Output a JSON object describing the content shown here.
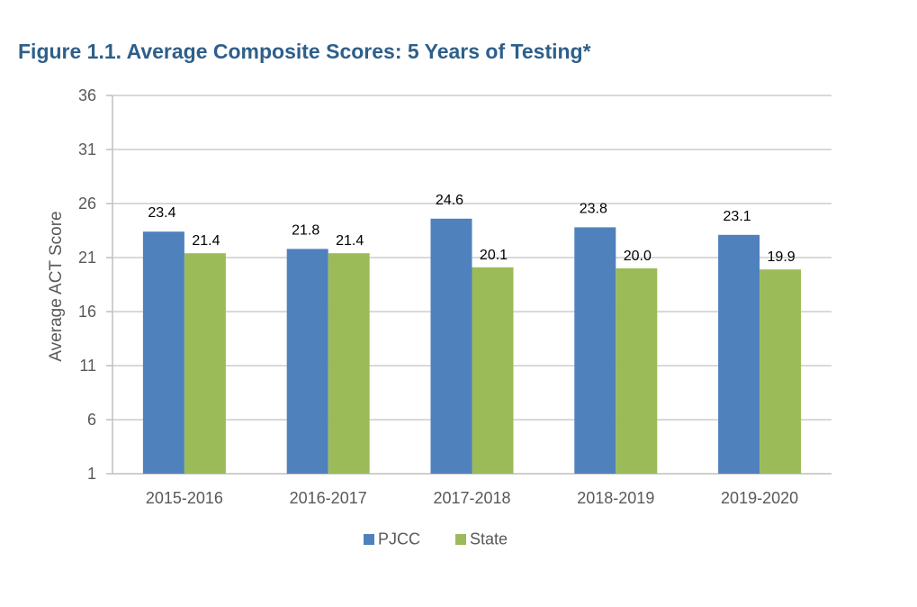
{
  "chart_data": {
    "type": "bar",
    "title": "Figure 1.1.  Average Composite Scores: 5 Years of Testing*",
    "xlabel": "",
    "ylabel": "Average ACT Score",
    "categories": [
      "2015-2016",
      "2016-2017",
      "2017-2018",
      "2018-2019",
      "2019-2020"
    ],
    "series": [
      {
        "name": "PJCC",
        "color": "#4F81BD",
        "values": [
          23.4,
          21.8,
          24.6,
          23.8,
          23.1
        ]
      },
      {
        "name": "State",
        "color": "#9BBB59",
        "values": [
          21.4,
          21.4,
          20.1,
          20.0,
          19.9
        ]
      }
    ],
    "ylim": [
      1,
      36
    ],
    "yticks": [
      1,
      6,
      11,
      16,
      21,
      26,
      31,
      36
    ],
    "grid": true,
    "legend": "bottom"
  }
}
